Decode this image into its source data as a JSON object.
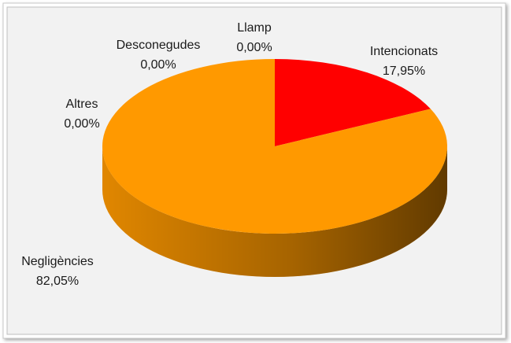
{
  "chart_data": {
    "type": "pie",
    "categories": [
      "Intencionats",
      "Negligències",
      "Altres",
      "Desconegudes",
      "Llamp"
    ],
    "values": [
      17.95,
      82.05,
      0,
      0,
      0
    ],
    "value_labels": [
      "17,95%",
      "82,05%",
      "0,00%",
      "0,00%",
      "0,00%"
    ],
    "colors": [
      "#ff0000",
      "#ff9900",
      "#a5a5a5",
      "#ffc000",
      "#4472c4"
    ]
  }
}
